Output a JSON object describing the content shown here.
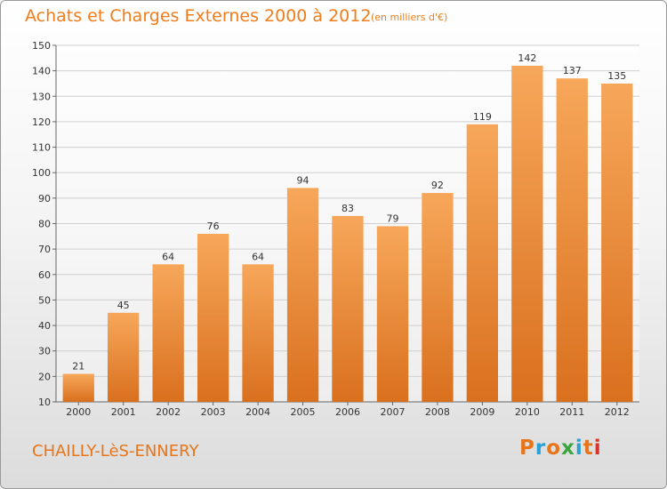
{
  "header": {
    "title": "Achats et Charges Externes 2000 à 2012",
    "subtitle": "(en milliers d'€)"
  },
  "footer": {
    "commune": "CHAILLY-LèS-ENNERY",
    "logo_text": "Proxiti",
    "logo_colors": [
      "#e8751a",
      "#2aa0d8",
      "#e8751a",
      "#3aa63c",
      "#2aa0d8",
      "#e8751a",
      "#d9342b"
    ]
  },
  "colors": {
    "bar_top": "#f7a75a",
    "bar_bottom": "#d9701e",
    "text": "#e8751a"
  },
  "chart_data": {
    "type": "bar",
    "categories": [
      "2000",
      "2001",
      "2002",
      "2003",
      "2004",
      "2005",
      "2006",
      "2007",
      "2008",
      "2009",
      "2010",
      "2011",
      "2012"
    ],
    "values": [
      21,
      45,
      64,
      76,
      64,
      94,
      83,
      79,
      92,
      119,
      142,
      137,
      135
    ],
    "ylim": [
      10,
      150
    ],
    "yticks": [
      10,
      20,
      30,
      40,
      50,
      60,
      70,
      80,
      90,
      100,
      110,
      120,
      130,
      140,
      150
    ],
    "grid": true,
    "data_labels": true
  }
}
